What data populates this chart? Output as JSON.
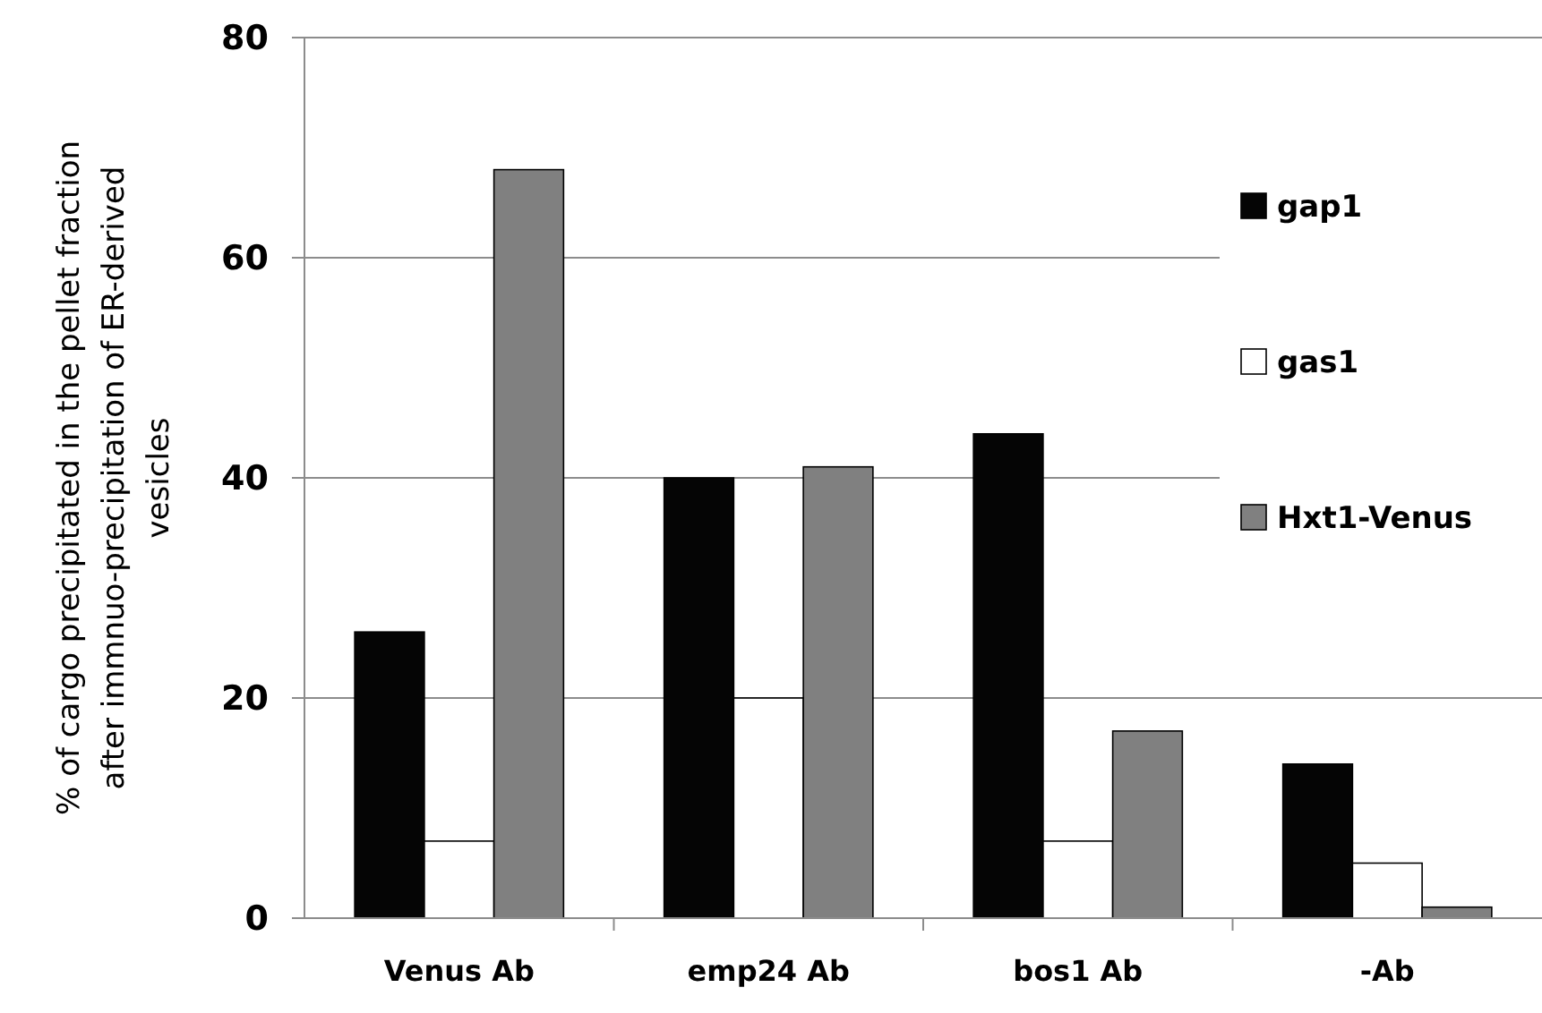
{
  "chart_data": {
    "type": "bar",
    "ylabel": "% of cargo precipitated in the pellet fraction after immnuo-precipitation of ER-derived vesicles",
    "categories": [
      "Venus Ab",
      "emp24 Ab",
      "bos1 Ab",
      "-Ab"
    ],
    "series": [
      {
        "name": "gap1",
        "color": "#050505",
        "values": [
          26,
          40,
          44,
          14
        ]
      },
      {
        "name": "gas1",
        "color": "#ffffff",
        "values": [
          7,
          20,
          7,
          5
        ]
      },
      {
        "name": "Hxt1-Venus",
        "color": "#808080",
        "values": [
          68,
          41,
          17,
          1
        ]
      }
    ],
    "ylim": [
      0,
      80
    ],
    "yticks": [
      0,
      20,
      40,
      60,
      80
    ],
    "grid": "y",
    "legend": "right"
  }
}
